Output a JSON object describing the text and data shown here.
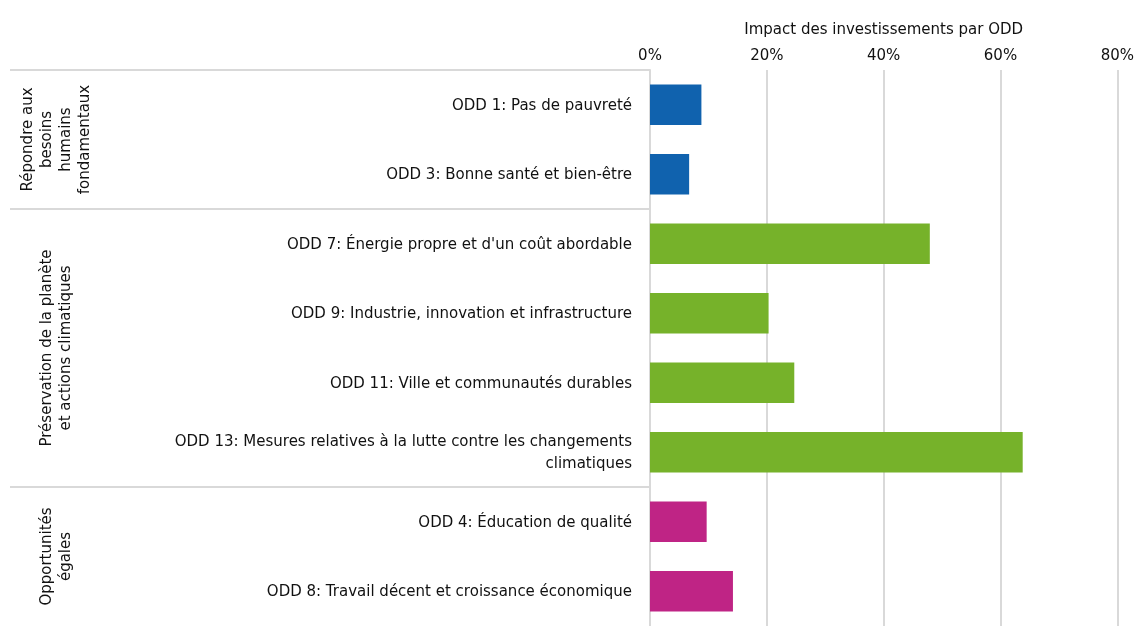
{
  "chart_data": {
    "type": "bar",
    "orientation": "horizontal",
    "xlabel": "Impact des investissements par ODD",
    "categories": [
      "ODD 1: Pas de pauvreté",
      "ODD 3: Bonne santé et bien-être",
      "ODD 7: Énergie propre et d'un coût abordable",
      "ODD 9: Industrie, innovation et infrastructure",
      "ODD 11: Ville et communautés durables",
      "ODD 13: Mesures relatives à la lutte contre les changements\nclimatiques",
      "ODD 4: Éducation de qualité",
      "ODD 8: Travail décent et croissance économique"
    ],
    "values": [
      8.8,
      6.7,
      47.9,
      20.3,
      24.7,
      63.8,
      9.7,
      14.2
    ],
    "colors": [
      "#1062ae",
      "#1062ae",
      "#76b22a",
      "#76b22a",
      "#76b22a",
      "#76b22a",
      "#bf2485",
      "#bf2485"
    ],
    "xlim": [
      0,
      80
    ],
    "xticks": [
      {
        "value": 0,
        "label": "0%"
      },
      {
        "value": 20,
        "label": "20%"
      },
      {
        "value": 40,
        "label": "40%"
      },
      {
        "value": 60,
        "label": "60%"
      },
      {
        "value": 80,
        "label": "80%"
      }
    ],
    "grid": "x",
    "annotations": [
      "Répondre aux\nbesoins\nhumains\nfondamentaux",
      "Préservation de la planète\net actions climatiques",
      "Opportunités\négales"
    ]
  }
}
